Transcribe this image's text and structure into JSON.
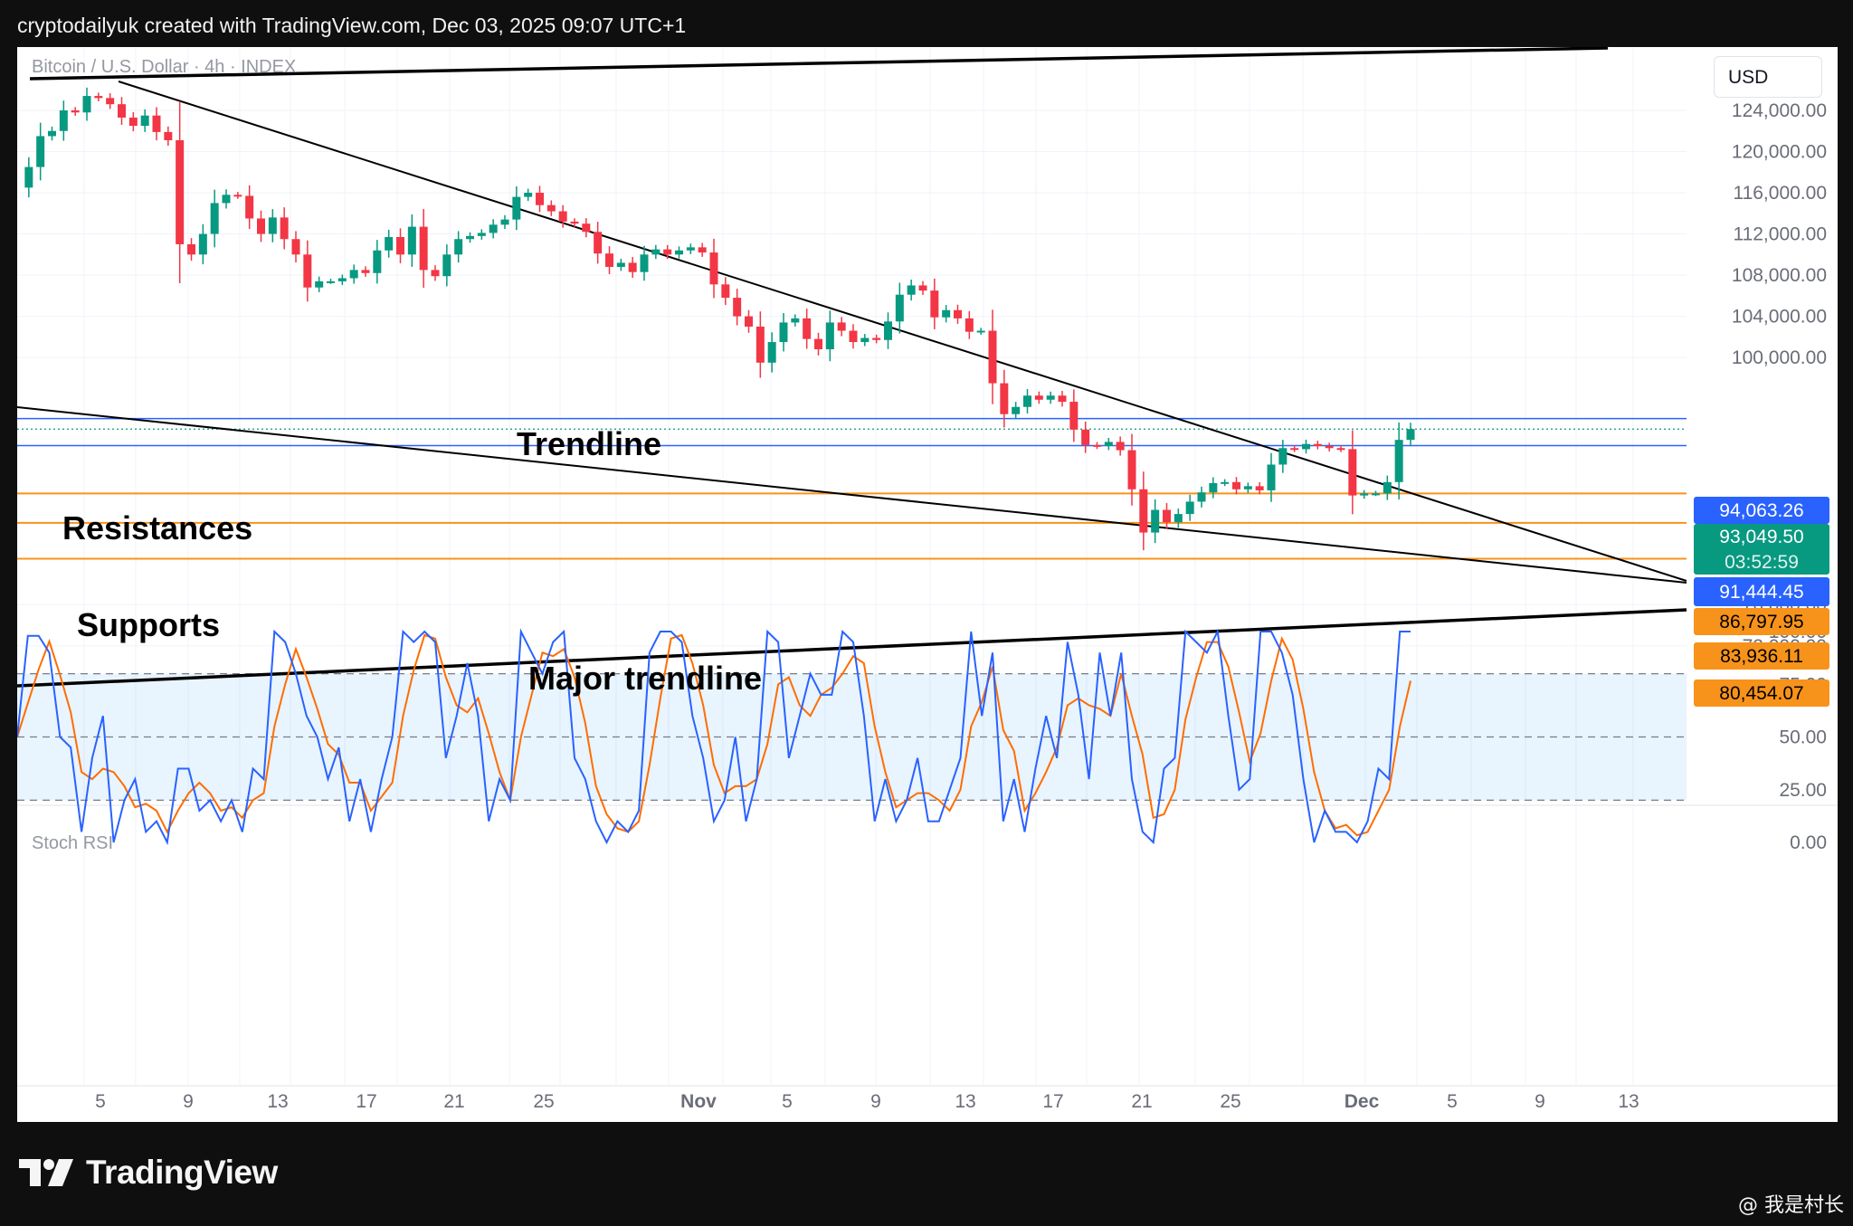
{
  "header": {
    "caption": "cryptodailyuk created with TradingView.com, Dec 03, 2025 09:07 UTC+1"
  },
  "footer": {
    "brand": "TradingView",
    "watermark": "@ 我是村长"
  },
  "chart": {
    "currency": "USD",
    "legend": "Bitcoin / U.S. Dollar · 4h · INDEX",
    "indicator_title": "Stoch RSI"
  },
  "chart_data": {
    "type": "candlestick",
    "y_axis_ticks": [
      "124,000.00",
      "120,000.00",
      "116,000.00",
      "112,000.00",
      "108,000.00",
      "104,000.00",
      "100,000.00",
      "76,000.00",
      "72,000.00"
    ],
    "rsi_axis_ticks": [
      "100.00",
      "75.00",
      "50.00",
      "25.00",
      "0.00"
    ],
    "x_axis_ticks": [
      "5",
      "9",
      "13",
      "17",
      "21",
      "25",
      "Nov",
      "5",
      "9",
      "13",
      "17",
      "21",
      "25",
      "Dec",
      "5",
      "9",
      "13"
    ],
    "price_labels": [
      {
        "text": "94,063.26",
        "color": "#2962ff"
      },
      {
        "text": "93,049.50",
        "color": "#089981"
      },
      {
        "text": "03:52:59",
        "color": "#089981"
      },
      {
        "text": "91,444.45",
        "color": "#2962ff"
      },
      {
        "text": "86,797.95",
        "color": "#f7931a"
      },
      {
        "text": "83,936.11",
        "color": "#f7931a"
      },
      {
        "text": "80,454.07",
        "color": "#f7931a"
      }
    ],
    "annotations": [
      "Trendline",
      "Resistances",
      "Supports",
      "Major trendline"
    ],
    "resistance_levels": [
      94063.26,
      91444.45
    ],
    "support_levels": [
      86797.95,
      83936.11,
      80454.07
    ],
    "last_price": 93049.5,
    "close_path": [
      116500,
      118500,
      121500,
      122000,
      124000,
      123800,
      125400,
      125200,
      124600,
      123300,
      122500,
      123500,
      121900,
      121100,
      111000,
      110000,
      112000,
      115000,
      115800,
      115700,
      113500,
      112000,
      113600,
      111500,
      110000,
      106800,
      107400,
      107400,
      107700,
      108500,
      108200,
      110400,
      111700,
      110000,
      112700,
      108500,
      107900,
      110000,
      111500,
      111800,
      112100,
      112900,
      113400,
      115600,
      116000,
      114800,
      114200,
      113200,
      113000,
      112200,
      110100,
      108800,
      109200,
      108300,
      110000,
      110500,
      110000,
      110400,
      110700,
      110200,
      107100,
      105800,
      104000,
      103000,
      99500,
      101500,
      103400,
      103800,
      101800,
      100800,
      103400,
      102600,
      101500,
      101900,
      101700,
      103500,
      106100,
      107000,
      106500,
      103900,
      104600,
      103800,
      102500,
      102600,
      97500,
      94500,
      95200,
      96300,
      95900,
      96300,
      95700,
      93000,
      91500,
      91400,
      91800,
      91000,
      87200,
      83000,
      85200,
      84000,
      84800,
      86000,
      86900,
      87800,
      87900,
      87200,
      87500,
      87100,
      89600,
      91200,
      91100,
      91600,
      91400,
      91200,
      91100,
      86600,
      86800,
      86800,
      87900,
      92000,
      93049.5
    ],
    "stoch_rsi_k": [
      50,
      98,
      98,
      90,
      50,
      45,
      5,
      40,
      60,
      0,
      20,
      30,
      5,
      10,
      0,
      35,
      35,
      15,
      20,
      10,
      20,
      5,
      35,
      30,
      100,
      95,
      80,
      60,
      50,
      30,
      45,
      10,
      30,
      5,
      30,
      50,
      100,
      95,
      100,
      95,
      40,
      60,
      85,
      60,
      10,
      30,
      20,
      100,
      90,
      80,
      95,
      100,
      40,
      30,
      10,
      0,
      10,
      5,
      15,
      90,
      100,
      100,
      95,
      60,
      40,
      10,
      20,
      50,
      10,
      30,
      100,
      95,
      40,
      60,
      80,
      70,
      70,
      100,
      95,
      60,
      10,
      30,
      10,
      20,
      40,
      10,
      10,
      25,
      40,
      100,
      60,
      90,
      10,
      30,
      5,
      35,
      60,
      40,
      95,
      70,
      30,
      90,
      60,
      90,
      30,
      5,
      0,
      35,
      40,
      100,
      95,
      90,
      100,
      60,
      25,
      30,
      100,
      100,
      90,
      70,
      30,
      0,
      15,
      5,
      5,
      0,
      10,
      35,
      30,
      100,
      100
    ]
  }
}
